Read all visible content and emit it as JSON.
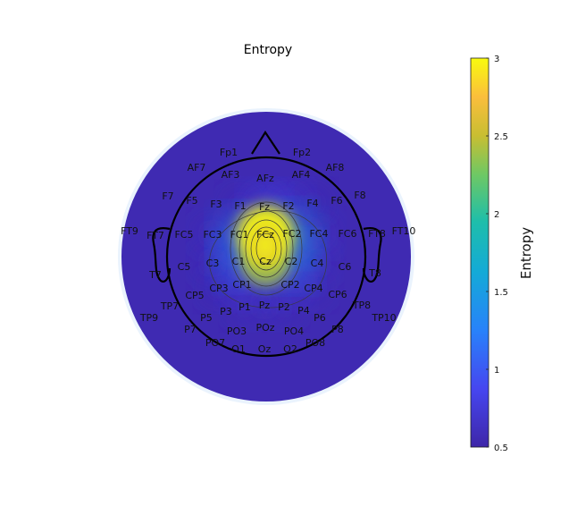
{
  "chart_data": {
    "type": "heatmap",
    "title": "Entropy",
    "colorbar": {
      "label": "Entropy",
      "range": [
        0.5,
        3
      ],
      "ticks": [
        "0.5",
        "1",
        "1.5",
        "2",
        "2.5",
        "3"
      ],
      "colormap": "parula"
    },
    "baseline_value": 0.55,
    "peak": {
      "channel": "FCz",
      "value": 3.0
    },
    "channels": [
      {
        "label": "Fp1",
        "value": 0.55
      },
      {
        "label": "Fp2",
        "value": 0.55
      },
      {
        "label": "AF7",
        "value": 0.55
      },
      {
        "label": "AF3",
        "value": 0.55
      },
      {
        "label": "AFz",
        "value": 0.55
      },
      {
        "label": "AF4",
        "value": 0.55
      },
      {
        "label": "AF8",
        "value": 0.55
      },
      {
        "label": "F7",
        "value": 0.55
      },
      {
        "label": "F5",
        "value": 0.55
      },
      {
        "label": "F3",
        "value": 0.55
      },
      {
        "label": "F1",
        "value": 0.6
      },
      {
        "label": "Fz",
        "value": 0.9
      },
      {
        "label": "F2",
        "value": 0.8
      },
      {
        "label": "F4",
        "value": 0.6
      },
      {
        "label": "F6",
        "value": 0.55
      },
      {
        "label": "F8",
        "value": 0.55
      },
      {
        "label": "FT9",
        "value": 0.55
      },
      {
        "label": "FT7",
        "value": 0.55
      },
      {
        "label": "FC5",
        "value": 0.55
      },
      {
        "label": "FC3",
        "value": 0.65
      },
      {
        "label": "FC1",
        "value": 1.3
      },
      {
        "label": "FCz",
        "value": 3.0
      },
      {
        "label": "FC2",
        "value": 1.5
      },
      {
        "label": "FC4",
        "value": 0.7
      },
      {
        "label": "FC6",
        "value": 0.55
      },
      {
        "label": "FT8",
        "value": 0.55
      },
      {
        "label": "FT10",
        "value": 0.55
      },
      {
        "label": "T7",
        "value": 0.55
      },
      {
        "label": "C5",
        "value": 0.55
      },
      {
        "label": "C3",
        "value": 0.65
      },
      {
        "label": "C1",
        "value": 1.2
      },
      {
        "label": "Cz",
        "value": 2.4
      },
      {
        "label": "C2",
        "value": 1.3
      },
      {
        "label": "C4",
        "value": 0.65
      },
      {
        "label": "C6",
        "value": 0.55
      },
      {
        "label": "T8",
        "value": 0.55
      },
      {
        "label": "TP7",
        "value": 0.55
      },
      {
        "label": "CP5",
        "value": 0.55
      },
      {
        "label": "CP3",
        "value": 0.6
      },
      {
        "label": "CP1",
        "value": 0.8
      },
      {
        "label": "CP2",
        "value": 0.8
      },
      {
        "label": "CP4",
        "value": 0.6
      },
      {
        "label": "CP6",
        "value": 0.55
      },
      {
        "label": "TP8",
        "value": 0.55
      },
      {
        "label": "TP9",
        "value": 0.55
      },
      {
        "label": "TP10",
        "value": 0.55
      },
      {
        "label": "P7",
        "value": 0.55
      },
      {
        "label": "P5",
        "value": 0.55
      },
      {
        "label": "P3",
        "value": 0.55
      },
      {
        "label": "P1",
        "value": 0.6
      },
      {
        "label": "Pz",
        "value": 0.65
      },
      {
        "label": "P2",
        "value": 0.6
      },
      {
        "label": "P4",
        "value": 0.55
      },
      {
        "label": "P6",
        "value": 0.55
      },
      {
        "label": "P8",
        "value": 0.55
      },
      {
        "label": "PO7",
        "value": 0.55
      },
      {
        "label": "PO3",
        "value": 0.55
      },
      {
        "label": "POz",
        "value": 0.55
      },
      {
        "label": "PO4",
        "value": 0.55
      },
      {
        "label": "PO8",
        "value": 0.55
      },
      {
        "label": "O1",
        "value": 0.55
      },
      {
        "label": "Oz",
        "value": 0.55
      },
      {
        "label": "O2",
        "value": 0.55
      }
    ]
  }
}
